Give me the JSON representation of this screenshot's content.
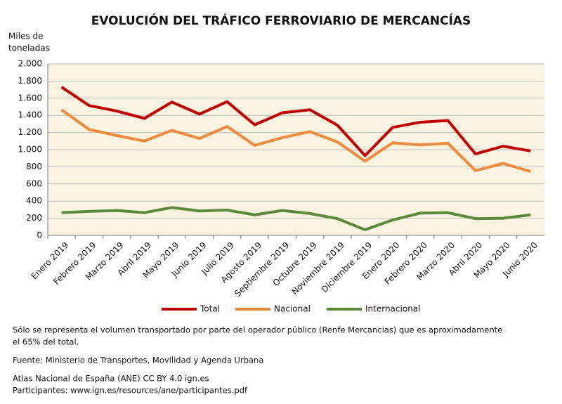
{
  "chart_data": {
    "type": "line",
    "title": "EVOLUCIÓN DEL TRÁFICO FERROVIARIO DE MERCANCÍAS",
    "y_label": [
      "Miles de",
      "toneladas"
    ],
    "categories": [
      "Enero 2019",
      "Febrero 2019",
      "Marzo 2019",
      "Abril 2019",
      "Mayo 2019",
      "Junio 2019",
      "Julio 2019",
      "Agosto 2019",
      "Septiembre 2019",
      "Octubre 2019",
      "Noviembre 2019",
      "Diciembre 2019",
      "Enero 2020",
      "Febrero 2020",
      "Marzo 2020",
      "Abril 2020",
      "Mayo 2020",
      "Junio 2020"
    ],
    "series": [
      {
        "name": "Total",
        "color": "#c00000",
        "values": [
          1730,
          1515,
          1450,
          1365,
          1555,
          1415,
          1560,
          1290,
          1430,
          1465,
          1285,
          930,
          1260,
          1320,
          1340,
          950,
          1040,
          985
        ]
      },
      {
        "name": "Nacional",
        "color": "#f08a3c",
        "values": [
          1465,
          1235,
          1165,
          1100,
          1225,
          1130,
          1270,
          1050,
          1140,
          1210,
          1090,
          865,
          1080,
          1055,
          1075,
          755,
          840,
          745
        ]
      },
      {
        "name": "Internacional",
        "color": "#5a8a3a",
        "values": [
          265,
          280,
          290,
          265,
          325,
          285,
          295,
          240,
          290,
          255,
          195,
          65,
          180,
          260,
          265,
          195,
          200,
          240
        ]
      }
    ],
    "ylim": [
      0,
      2000
    ],
    "yticks": [
      0,
      200,
      400,
      600,
      800,
      {
        "value": 1000,
        "label": "1.000"
      },
      {
        "value": 1200,
        "label": "1.200"
      },
      {
        "value": 1400,
        "label": "1.400"
      },
      {
        "value": 1600,
        "label": "1.600"
      },
      {
        "value": 1800,
        "label": "1.800"
      },
      {
        "value": 2000,
        "label": "2.000"
      }
    ],
    "grid": true,
    "legend": "bottom",
    "notes": [
      "Sólo se representa el volumen transportado por parte del operador público (Renfe Mercancías) que es aproximadamente",
      "el 65% del total."
    ],
    "source": "Fuente: Ministerio de Transportes, Movilidad y Agenda Urbana",
    "credits": [
      "Atlas Nacional de España (ANE) CC BY 4.0 ign.es",
      "Participantes: www.ign.es/resources/ane/participantes.pdf"
    ]
  }
}
